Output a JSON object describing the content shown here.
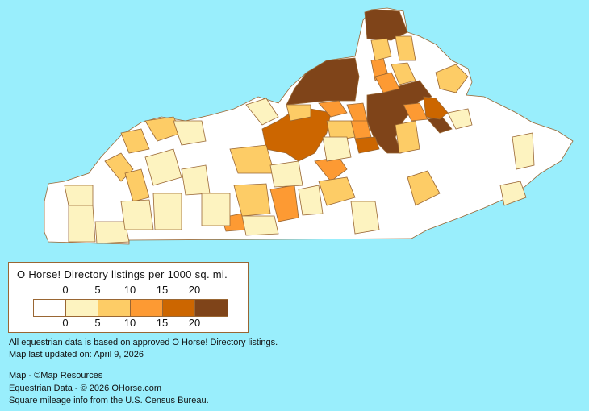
{
  "legend": {
    "title": "O Horse! Directory listings per 1000 sq. mi.",
    "ticks": [
      "0",
      "5",
      "10",
      "15",
      "20"
    ],
    "colors": [
      "#ffffff",
      "#fdf3c0",
      "#fdcc66",
      "#fd9a33",
      "#cc6600",
      "#7f4419"
    ]
  },
  "notes": {
    "data_basis": "All equestrian data is based on approved O Horse! Directory listings.",
    "updated": "Map last updated on: April 9, 2026"
  },
  "credits": {
    "map": "Map - ©Map Resources",
    "data": "Equestrian Data - © 2026 OHorse.com",
    "census": "Square mileage info from the U.S. Census Bureau."
  },
  "colors": {
    "background": "#99eefc",
    "border": "#996633"
  }
}
